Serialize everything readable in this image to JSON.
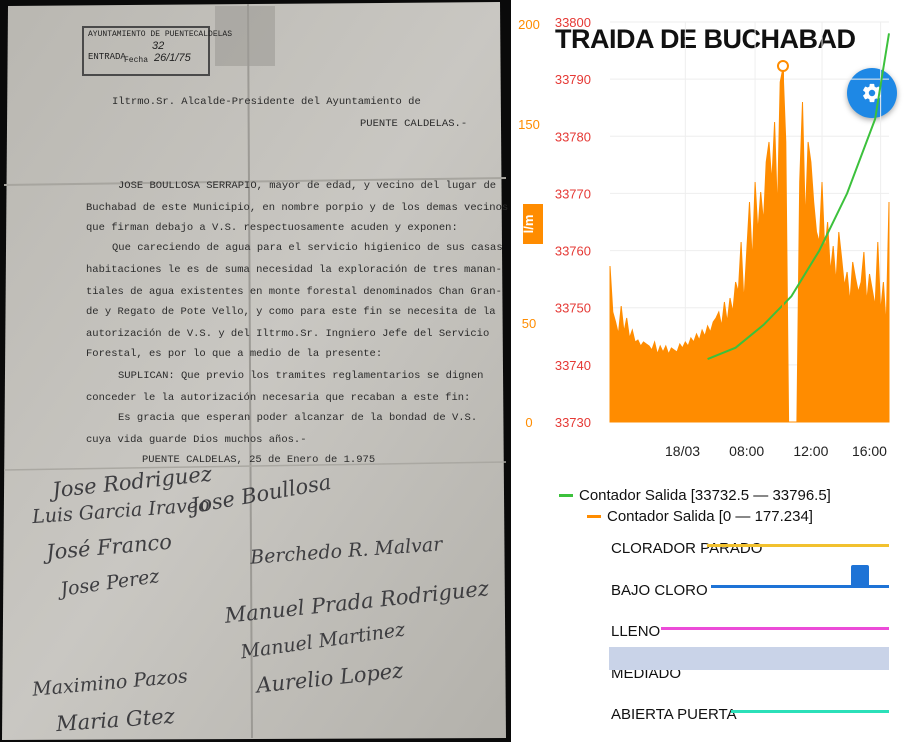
{
  "document": {
    "stamp_line1": "AYUNTAMIENTO DE PUENTECALDELAS",
    "stamp_entrada": "ENTRADA",
    "stamp_number": "32",
    "stamp_fecha": "Fecha",
    "stamp_date": "26/1/75",
    "address_line1": "Iltrmo.Sr. Alcalde-Presidente del Ayuntamiento de",
    "address_line2": "PUENTE CALDELAS.-",
    "body_lines": [
      "JOSE BOULLOSA SERRAPIO, mayor de edad, y vecino del lugar de",
      "Buchabad de este Municipio, en nombre porpio y de los demas vecinos",
      "que firman debajo a V.S. respectuosamente acuden y exponen:",
      "Que careciendo de agua para el servicio higienico de sus casas",
      "habitaciones le es de suma necesidad la exploración de tres manan-",
      "tiales de agua existentes en monte forestal denominados Chan Gran-",
      "de y Regato de Pote Vello, y como para este fin se necesita de la",
      "autorización de V.S. y del Iltrmo.Sr. Ingniero Jefe del Servicio",
      "Forestal, es por lo que a medio de la presente:",
      "SUPLICAN: Que previo los tramites reglamentarios se dignen",
      "conceder le la autorización necesaria que recaban a este fin:",
      "Es gracia que esperan poder alcanzar de la bondad de V.S.",
      "cuya vida guarde Dios muchos años.-",
      "PUENTE CALDELAS, 25 de Enero de 1.975"
    ],
    "signatures": [
      "Jose Rodriguez",
      "Luis Garcia Iraveo",
      "José Franco",
      "Jose Perez",
      "Jose Boullosa",
      "Berchedo R. Malvar",
      "Manuel Prada Rodriguez",
      "Manuel Martinez",
      "Aurelio Lopez",
      "Maximino Pazos",
      "Maria Gtez"
    ]
  },
  "app": {
    "title": "TRAIDA DE BUCHABAD",
    "settings_icon": "gear-icon",
    "accent": "#1e88e5",
    "unit_badge": "l/m",
    "legend": [
      {
        "label": "Contador Salida [33732.5 — 33796.5]",
        "color": "#3cc13c"
      },
      {
        "label": "Contador Salida [0 — 177.234]",
        "color": "#ff8c00"
      }
    ],
    "states": [
      {
        "label": "CLORADOR PARADO",
        "color": "#f2c12e"
      },
      {
        "label": "BAJO CLORO",
        "color": "#1e73d6"
      },
      {
        "label": "LLENO",
        "color": "#ec4bd8"
      },
      {
        "label": "MEDIADO",
        "color": "#c9d3e8"
      },
      {
        "label": "ABIERTA PUERTA",
        "color": "#2be0b9"
      }
    ]
  },
  "chart_data": {
    "type": "line",
    "x_ticks": [
      "18/03",
      "08:00",
      "12:00",
      "16:00"
    ],
    "y_left_orange": {
      "ticks": [
        "0",
        "50",
        "150",
        "200"
      ],
      "range": [
        0,
        200
      ],
      "color": "#ff8c00"
    },
    "y_left_red": {
      "ticks": [
        "33730",
        "33740",
        "33750",
        "33760",
        "33770",
        "33780",
        "33790",
        "33800"
      ],
      "range": [
        33730,
        33800
      ],
      "color": "#e53935"
    },
    "series": [
      {
        "name": "Contador Salida",
        "axis": "red",
        "color": "#3cc13c",
        "x": [
          0.35,
          0.45,
          0.55,
          0.65,
          0.75,
          0.85,
          0.95,
          1.0
        ],
        "y": [
          33741,
          33743,
          33747,
          33752,
          33760,
          33770,
          33783,
          33798
        ]
      },
      {
        "name": "Contador Salida",
        "axis": "orange",
        "color": "#ff8c00",
        "marker": {
          "x": 0.62,
          "y": 177
        },
        "x": [
          0.0,
          0.01,
          0.02,
          0.03,
          0.04,
          0.05,
          0.06,
          0.07,
          0.08,
          0.09,
          0.1,
          0.11,
          0.12,
          0.13,
          0.14,
          0.15,
          0.16,
          0.17,
          0.18,
          0.19,
          0.2,
          0.21,
          0.22,
          0.23,
          0.24,
          0.25,
          0.26,
          0.27,
          0.28,
          0.29,
          0.3,
          0.31,
          0.32,
          0.33,
          0.34,
          0.35,
          0.36,
          0.37,
          0.38,
          0.39,
          0.4,
          0.41,
          0.42,
          0.43,
          0.44,
          0.45,
          0.46,
          0.47,
          0.48,
          0.49,
          0.5,
          0.51,
          0.52,
          0.53,
          0.54,
          0.55,
          0.56,
          0.57,
          0.58,
          0.59,
          0.6,
          0.61,
          0.62,
          0.63,
          0.64,
          0.65,
          0.66,
          0.67,
          0.68,
          0.69,
          0.7,
          0.71,
          0.72,
          0.73,
          0.74,
          0.75,
          0.76,
          0.77,
          0.78,
          0.79,
          0.8,
          0.81,
          0.82,
          0.83,
          0.84,
          0.85,
          0.86,
          0.87,
          0.88,
          0.89,
          0.9,
          0.91,
          0.92,
          0.93,
          0.94,
          0.95,
          0.96,
          0.97,
          0.98,
          0.99,
          1.0
        ],
        "y": [
          78,
          55,
          50,
          44,
          58,
          45,
          52,
          42,
          46,
          40,
          41,
          38,
          40,
          39,
          38,
          36,
          40,
          34,
          38,
          35,
          38,
          34,
          37,
          36,
          35,
          39,
          37,
          40,
          38,
          42,
          40,
          44,
          41,
          46,
          43,
          48,
          45,
          50,
          52,
          55,
          48,
          60,
          50,
          62,
          55,
          70,
          65,
          90,
          60,
          85,
          110,
          80,
          120,
          95,
          115,
          100,
          130,
          140,
          120,
          150,
          105,
          170,
          177,
          140,
          0,
          0,
          0,
          0,
          120,
          160,
          100,
          140,
          130,
          110,
          95,
          90,
          120,
          85,
          100,
          75,
          88,
          70,
          95,
          82,
          68,
          75,
          60,
          80,
          72,
          65,
          70,
          85,
          60,
          74,
          66,
          58,
          90,
          55,
          70,
          48,
          110
        ]
      }
    ]
  }
}
